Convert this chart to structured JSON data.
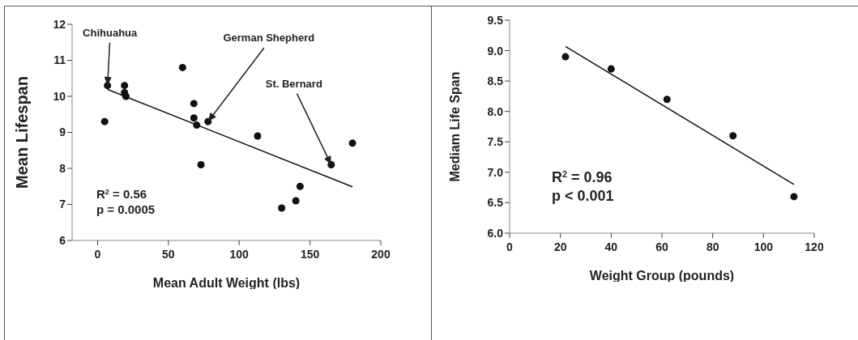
{
  "chart_data": [
    {
      "type": "scatter",
      "xlabel": "Mean Adult Weight (lbs)",
      "ylabel": "Mean Lifespan",
      "xlim": [
        -18,
        200
      ],
      "xticks": [
        0,
        50,
        100,
        150,
        200
      ],
      "ylim": [
        6,
        12
      ],
      "yticks": [
        6,
        7,
        8,
        9,
        10,
        11,
        12
      ],
      "grid": false,
      "legend": false,
      "series": [
        {
          "type": "scatter",
          "color": "#111111",
          "marker": "circle",
          "x": [
            7,
            5,
            19,
            19,
            20,
            60,
            68,
            68,
            70,
            78,
            73,
            113,
            130,
            140,
            143,
            165,
            180
          ],
          "values": [
            10.3,
            9.3,
            10.3,
            10.1,
            10.0,
            10.8,
            9.8,
            9.4,
            9.2,
            9.3,
            8.1,
            8.9,
            6.9,
            7.1,
            7.5,
            8.1,
            8.7
          ]
        },
        {
          "type": "line",
          "color": "#111111",
          "marker": "none",
          "x": [
            7,
            180
          ],
          "values": [
            10.19,
            7.49
          ]
        }
      ],
      "annotations": [
        "Chihuahua",
        "German Shepherd",
        "St. Bernard",
        "R$^{2}$ = 0.56",
        "p = 0.0005"
      ]
    },
    {
      "type": "scatter",
      "xlabel": "Weight Group (pounds)",
      "ylabel": "Mediam Life Span",
      "xlim": [
        0,
        120
      ],
      "xticks": [
        0,
        20,
        40,
        60,
        80,
        100,
        120
      ],
      "ylim": [
        6,
        9.5
      ],
      "yticks": [
        {
          "value": 6,
          "label": "6.0"
        },
        6.5,
        {
          "value": 7,
          "label": "7.0"
        },
        7.5,
        {
          "value": 8,
          "label": "8.0"
        },
        8.5,
        {
          "value": 9,
          "label": "9.0"
        },
        9.5
      ],
      "grid": false,
      "legend": false,
      "series": [
        {
          "type": "scatter",
          "color": "#111111",
          "marker": "circle",
          "x": [
            22,
            40,
            62,
            88,
            112
          ],
          "values": [
            8.9,
            8.7,
            8.2,
            7.6,
            6.6
          ]
        },
        {
          "type": "line",
          "color": "#111111",
          "marker": "none",
          "x": [
            22,
            112
          ],
          "values": [
            9.07,
            6.8
          ]
        }
      ],
      "annotations": [
        "R$^{2}$ = 0.96",
        "p < 0.001"
      ]
    }
  ]
}
